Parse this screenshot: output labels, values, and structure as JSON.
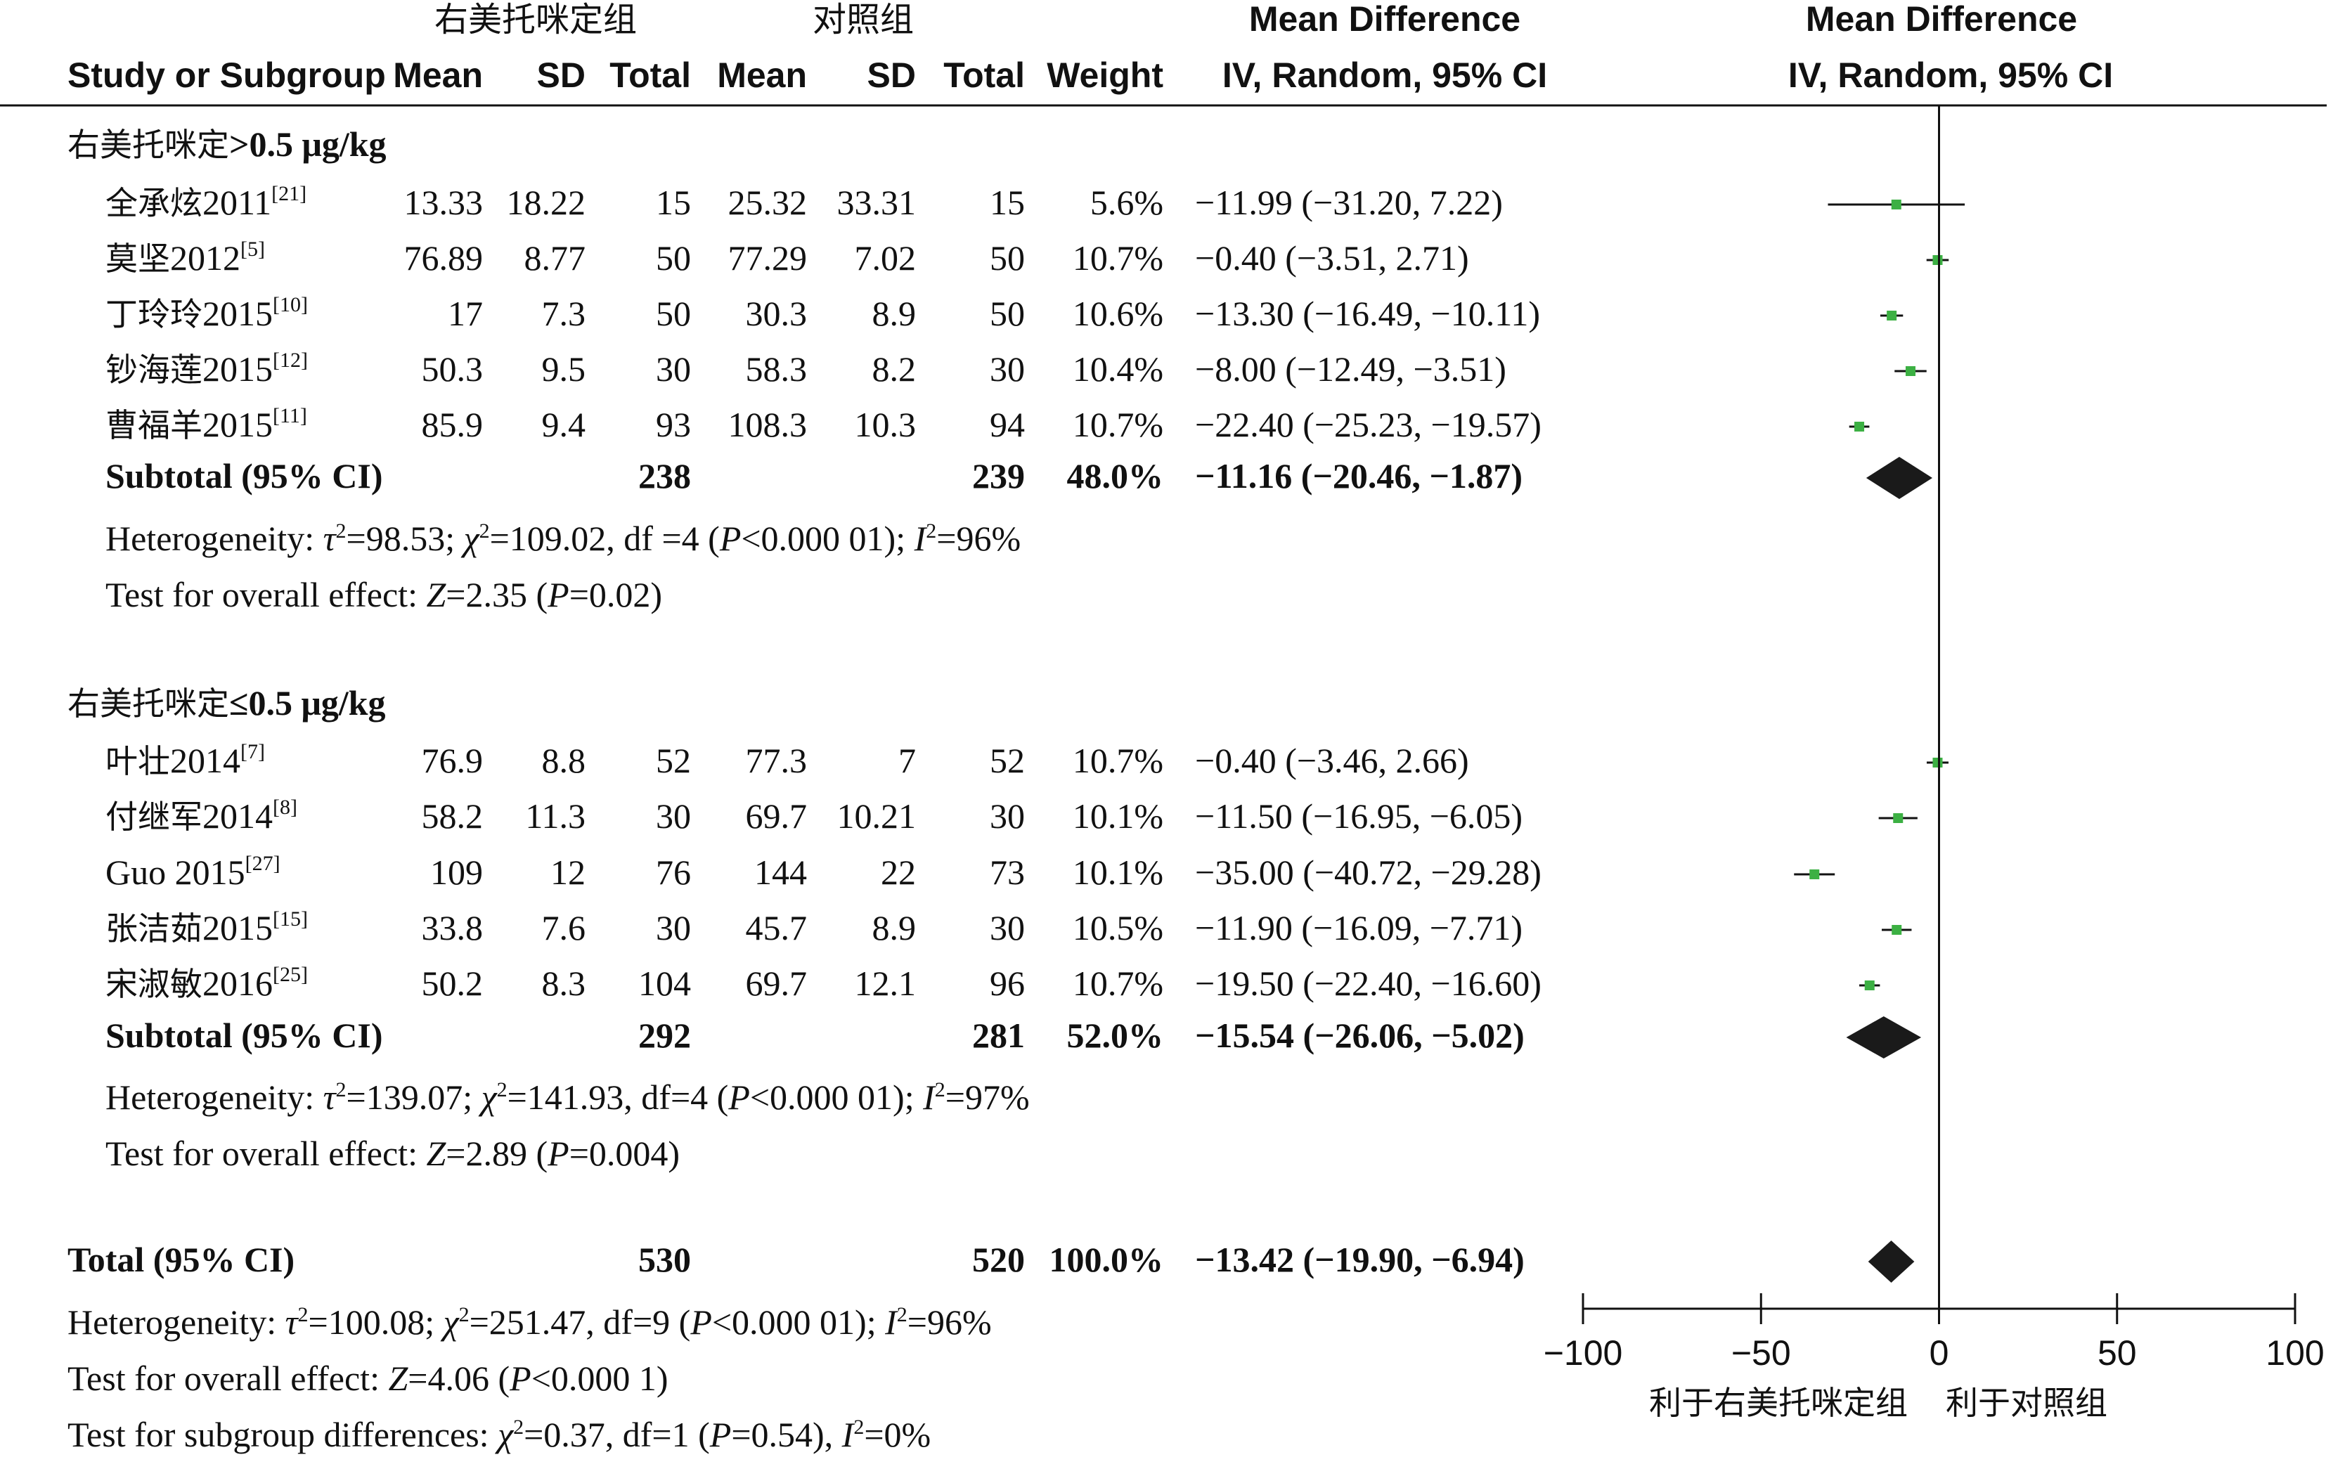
{
  "headers": {
    "group_exp": "右美托咪定组",
    "group_ctl": "对照组",
    "md_title": "Mean Difference",
    "md_sub": "IV, Random, 95% CI",
    "plot_title": "Mean Difference",
    "plot_sub": "IV, Random, 95% CI",
    "study": "Study or Subgroup",
    "mean": "Mean",
    "sd": "SD",
    "total": "Total",
    "weight": "Weight"
  },
  "favours": {
    "left": "利于右美托咪定组",
    "right": "利于对照组"
  },
  "chart_data": {
    "type": "forest",
    "xlim": [
      -100,
      100
    ],
    "xticks": [
      -100,
      -50,
      0,
      50,
      100
    ],
    "xtick_labels": [
      "−100",
      "−50",
      "0",
      "50",
      "100"
    ],
    "subgroups": [
      {
        "label_cn": "右美托咪定",
        "label_en": ">0.5 μg/kg",
        "studies": [
          {
            "name": "全承炫2011",
            "ref": "[21]",
            "mean_e": "13.33",
            "sd_e": "18.22",
            "n_e": "15",
            "mean_c": "25.32",
            "sd_c": "33.31",
            "n_c": "15",
            "weight": "5.6%",
            "ci_text": "−11.99 (−31.20, 7.22)",
            "md": -11.99,
            "lo": -31.2,
            "hi": 7.22
          },
          {
            "name": "莫坚2012",
            "ref": "[5]",
            "mean_e": "76.89",
            "sd_e": "8.77",
            "n_e": "50",
            "mean_c": "77.29",
            "sd_c": "7.02",
            "n_c": "50",
            "weight": "10.7%",
            "ci_text": "−0.40 (−3.51, 2.71)",
            "md": -0.4,
            "lo": -3.51,
            "hi": 2.71
          },
          {
            "name": "丁玲玲2015",
            "ref": "[10]",
            "mean_e": "17",
            "sd_e": "7.3",
            "n_e": "50",
            "mean_c": "30.3",
            "sd_c": "8.9",
            "n_c": "50",
            "weight": "10.6%",
            "ci_text": "−13.30 (−16.49, −10.11)",
            "md": -13.3,
            "lo": -16.49,
            "hi": -10.11
          },
          {
            "name": "钞海莲2015",
            "ref": "[12]",
            "mean_e": "50.3",
            "sd_e": "9.5",
            "n_e": "30",
            "mean_c": "58.3",
            "sd_c": "8.2",
            "n_c": "30",
            "weight": "10.4%",
            "ci_text": "−8.00 (−12.49, −3.51)",
            "md": -8.0,
            "lo": -12.49,
            "hi": -3.51
          },
          {
            "name": "曹福羊2015",
            "ref": "[11]",
            "mean_e": "85.9",
            "sd_e": "9.4",
            "n_e": "93",
            "mean_c": "108.3",
            "sd_c": "10.3",
            "n_c": "94",
            "weight": "10.7%",
            "ci_text": "−22.40 (−25.23, −19.57)",
            "md": -22.4,
            "lo": -25.23,
            "hi": -19.57
          }
        ],
        "subtotal": {
          "label": "Subtotal (95% CI)",
          "n_e": "238",
          "n_c": "239",
          "weight": "48.0%",
          "ci_text": "−11.16 (−20.46, −1.87)",
          "md": -11.16,
          "lo": -20.46,
          "hi": -1.87
        },
        "heterogeneity": {
          "prefix": "Heterogeneity: ",
          "tau_var": "τ",
          "tau_val": "=98.53; ",
          "chi_var": "χ",
          "chi_val": "=109.02, df =4 (",
          "p_var": "P",
          "p_val": "<0.000 01); ",
          "i_var": "I",
          "i_val": "=96%"
        },
        "overall": {
          "prefix": "Test for overall effect: ",
          "z_var": "Z",
          "z_val": "=2.35 (",
          "p_var": "P",
          "p_val": "=0.02)"
        }
      },
      {
        "label_cn": "右美托咪定",
        "label_en": "≤0.5 μg/kg",
        "studies": [
          {
            "name": "叶壮2014",
            "ref": "[7]",
            "mean_e": "76.9",
            "sd_e": "8.8",
            "n_e": "52",
            "mean_c": "77.3",
            "sd_c": "7",
            "n_c": "52",
            "weight": "10.7%",
            "ci_text": "−0.40 (−3.46, 2.66)",
            "md": -0.4,
            "lo": -3.46,
            "hi": 2.66
          },
          {
            "name": "付继军2014",
            "ref": "[8]",
            "mean_e": "58.2",
            "sd_e": "11.3",
            "n_e": "30",
            "mean_c": "69.7",
            "sd_c": "10.21",
            "n_c": "30",
            "weight": "10.1%",
            "ci_text": "−11.50 (−16.95, −6.05)",
            "md": -11.5,
            "lo": -16.95,
            "hi": -6.05
          },
          {
            "name": "Guo 2015",
            "ref": "[27]",
            "mean_e": "109",
            "sd_e": "12",
            "n_e": "76",
            "mean_c": "144",
            "sd_c": "22",
            "n_c": "73",
            "weight": "10.1%",
            "ci_text": "−35.00 (−40.72, −29.28)",
            "md": -35.0,
            "lo": -40.72,
            "hi": -29.28
          },
          {
            "name": "张洁茹2015",
            "ref": "[15]",
            "mean_e": "33.8",
            "sd_e": "7.6",
            "n_e": "30",
            "mean_c": "45.7",
            "sd_c": "8.9",
            "n_c": "30",
            "weight": "10.5%",
            "ci_text": "−11.90 (−16.09, −7.71)",
            "md": -11.9,
            "lo": -16.09,
            "hi": -7.71
          },
          {
            "name": "宋淑敏2016",
            "ref": "[25]",
            "mean_e": "50.2",
            "sd_e": "8.3",
            "n_e": "104",
            "mean_c": "69.7",
            "sd_c": "12.1",
            "n_c": "96",
            "weight": "10.7%",
            "ci_text": "−19.50 (−22.40, −16.60)",
            "md": -19.5,
            "lo": -22.4,
            "hi": -16.6
          }
        ],
        "subtotal": {
          "label": "Subtotal (95% CI)",
          "n_e": "292",
          "n_c": "281",
          "weight": "52.0%",
          "ci_text": "−15.54 (−26.06, −5.02)",
          "md": -15.54,
          "lo": -26.06,
          "hi": -5.02
        },
        "heterogeneity": {
          "prefix": "Heterogeneity: ",
          "tau_var": "τ",
          "tau_val": "=139.07; ",
          "chi_var": "χ",
          "chi_val": "=141.93, df=4 (",
          "p_var": "P",
          "p_val": "<0.000 01); ",
          "i_var": "I",
          "i_val": "=97%"
        },
        "overall": {
          "prefix": "Test for overall effect: ",
          "z_var": "Z",
          "z_val": "=2.89 (",
          "p_var": "P",
          "p_val": "=0.004)"
        }
      }
    ],
    "total": {
      "label": "Total (95% CI)",
      "n_e": "530",
      "n_c": "520",
      "weight": "100.0%",
      "ci_text": "−13.42 (−19.90, −6.94)",
      "md": -13.42,
      "lo": -19.9,
      "hi": -6.94
    },
    "total_heterogeneity": {
      "prefix": "Heterogeneity: ",
      "tau_var": "τ",
      "tau_val": "=100.08; ",
      "chi_var": "χ",
      "chi_val": "=251.47, df=9 (",
      "p_var": "P",
      "p_val": "<0.000 01); ",
      "i_var": "I",
      "i_val": "=96%"
    },
    "total_overall": {
      "prefix": "Test for overall effect: ",
      "z_var": "Z",
      "z_val": "=4.06 (",
      "p_var": "P",
      "p_val": "<0.000 1)"
    },
    "subgroup_diff": {
      "prefix": "Test for subgroup differences: ",
      "chi_var": "χ",
      "chi_val": "=0.37, df=1 (",
      "p_var": "P",
      "p_val": "=0.54), ",
      "i_var": "I",
      "i_val": "=0%"
    },
    "colors": {
      "point": "#3cb043",
      "diamond": "#1a1a1a",
      "line": "#111111"
    }
  }
}
